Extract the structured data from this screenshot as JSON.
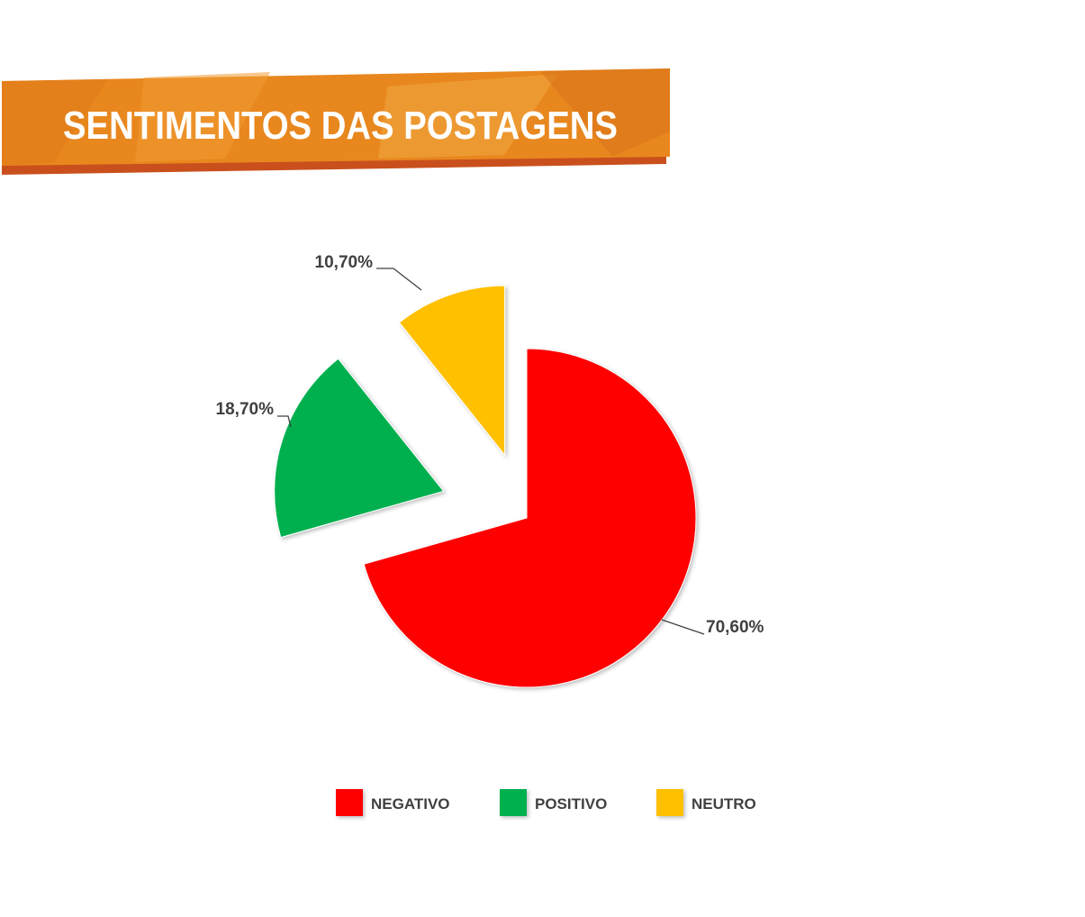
{
  "title": "SENTIMENTOS DAS POSTAGENS",
  "colors": {
    "banner_main": "#E8871E",
    "banner_shadow": "#C9501C",
    "negativo": "#FF0000",
    "positivo": "#00B050",
    "neutro": "#FFC000",
    "label_text": "#404040"
  },
  "chart_data": {
    "type": "pie",
    "title": "SENTIMENTOS DAS POSTAGENS",
    "categories": [
      "NEGATIVO",
      "POSITIVO",
      "NEUTRO"
    ],
    "values": [
      70.6,
      18.7,
      10.7
    ],
    "value_labels": [
      "70,60%",
      "18,70%",
      "10,70%"
    ],
    "colors": [
      "#FF0000",
      "#00B050",
      "#FFC000"
    ],
    "exploded": [
      false,
      true,
      true
    ],
    "legend_position": "bottom"
  }
}
